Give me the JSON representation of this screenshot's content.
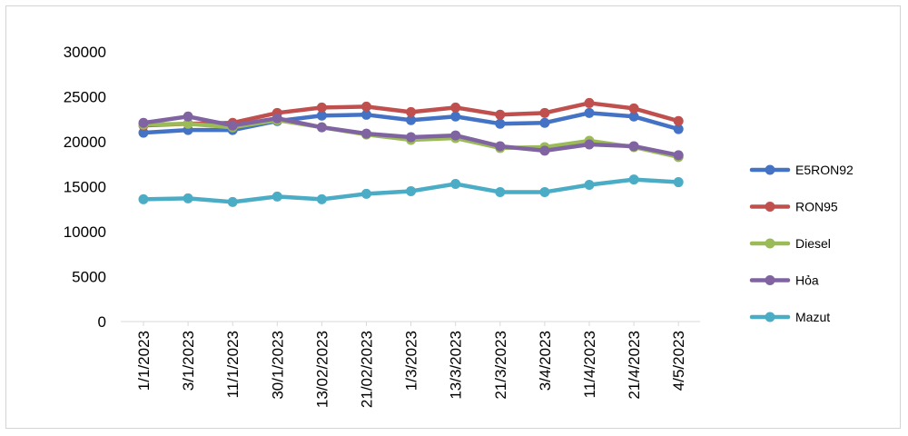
{
  "chart_data": {
    "type": "line",
    "title": "",
    "xlabel": "",
    "ylabel": "",
    "ylim": [
      0,
      30000
    ],
    "yticks": [
      0,
      5000,
      10000,
      15000,
      20000,
      25000,
      30000
    ],
    "grid": false,
    "legend_position": "right",
    "categories": [
      "1/1/2023",
      "3/1/2023",
      "11/1/2023",
      "30/1/2023",
      "13/02/2023",
      "21/02/2023",
      "1/3/2023",
      "13/3/2023",
      "21/3/2023",
      "3/4/2023",
      "11/4/2023",
      "21/4/2023",
      "4/5/2023"
    ],
    "series": [
      {
        "name": "E5RON92",
        "color": "#4472c4",
        "values": [
          21000,
          21300,
          21300,
          22300,
          22900,
          23000,
          22400,
          22800,
          22000,
          22100,
          23200,
          22800,
          21400
        ]
      },
      {
        "name": "RON95",
        "color": "#c0504d",
        "values": [
          21800,
          22000,
          22100,
          23200,
          23800,
          23900,
          23300,
          23800,
          23000,
          23200,
          24300,
          23700,
          22300
        ]
      },
      {
        "name": "Diesel",
        "color": "#9bbb59",
        "values": [
          21900,
          22000,
          21600,
          22400,
          21600,
          20800,
          20200,
          20400,
          19300,
          19400,
          20100,
          19400,
          18300
        ]
      },
      {
        "name": "Hỏa",
        "color": "#8064a2",
        "values": [
          22100,
          22800,
          21800,
          22600,
          21600,
          20900,
          20500,
          20700,
          19500,
          19000,
          19700,
          19500,
          18500
        ]
      },
      {
        "name": "Mazut",
        "color": "#4bacc6",
        "values": [
          13600,
          13700,
          13300,
          13900,
          13600,
          14200,
          14500,
          15300,
          14400,
          14400,
          15200,
          15800,
          15500
        ]
      }
    ]
  }
}
